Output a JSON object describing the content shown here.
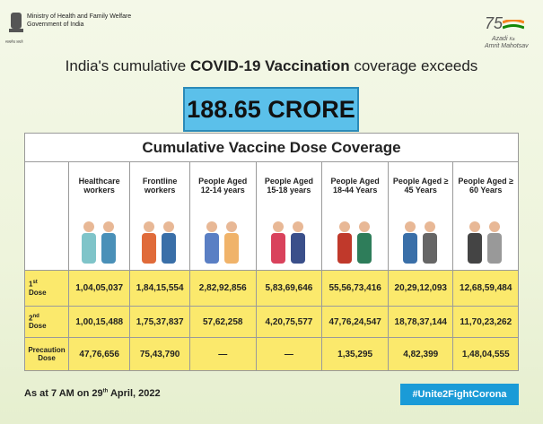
{
  "header": {
    "ministry": "Ministry of Health and Family Welfare",
    "government": "Government of India",
    "emblem_caption": "सत्यमेव जयते",
    "logo_number": "75",
    "logo_line1": "Azadi",
    "logo_line2": "Ka",
    "logo_line3": "Amrit",
    "logo_line4": "Mahotsav"
  },
  "headline": {
    "before": "India's cumulative ",
    "bold": "COVID-19 Vaccination",
    "after": " coverage exceeds"
  },
  "total": "188.65 CRORE",
  "table": {
    "title": "Cumulative Vaccine Dose Coverage",
    "columns": [
      "Healthcare workers",
      "Frontline workers",
      "People Aged 12-14 years",
      "People Aged 15-18 years",
      "People Aged 18-44 Years",
      "People Aged ≥ 45 Years",
      "People Aged ≥ 60 Years"
    ],
    "rows": [
      {
        "num": "1",
        "sup": "st",
        "word": "Dose",
        "values": [
          "1,04,05,037",
          "1,84,15,554",
          "2,82,92,856",
          "5,83,69,646",
          "55,56,73,416",
          "20,29,12,093",
          "12,68,59,484"
        ]
      },
      {
        "num": "2",
        "sup": "nd",
        "word": "Dose",
        "values": [
          "1,00,15,488",
          "1,75,37,837",
          "57,62,258",
          "4,20,75,577",
          "47,76,24,547",
          "18,78,37,144",
          "11,70,23,262"
        ]
      },
      {
        "num": "",
        "sup": "",
        "word": "Precaution Dose",
        "values": [
          "47,76,656",
          "75,43,790",
          "—",
          "—",
          "1,35,295",
          "4,82,399",
          "1,48,04,555"
        ]
      }
    ]
  },
  "footer": {
    "before": "As at 7 AM on 29",
    "sup": "th",
    "after": " April, 2022",
    "hashtag": "#Unite2FightCorona"
  }
}
